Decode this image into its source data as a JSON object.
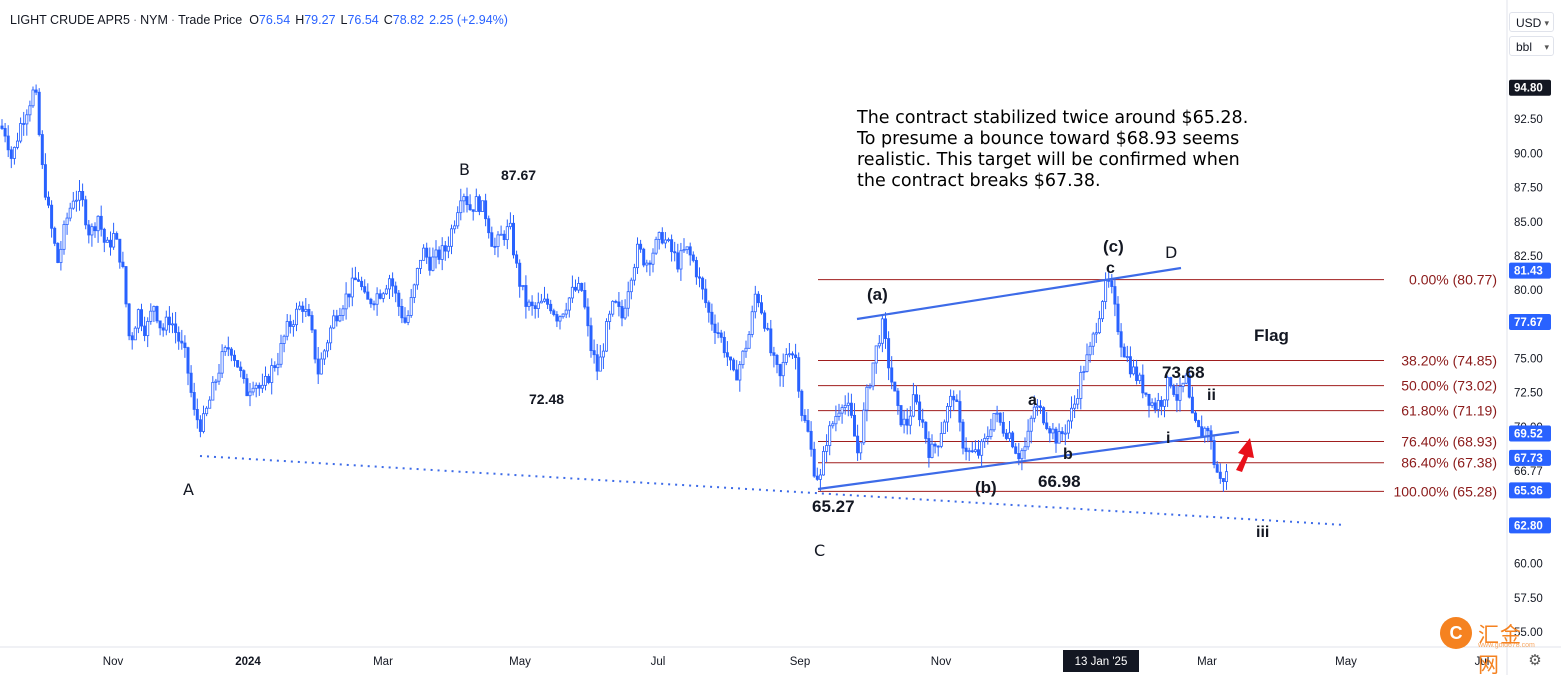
{
  "header": {
    "symbol": "LIGHT CRUDE APR5",
    "exchange": "NYM",
    "price_type": "Trade Price",
    "open_label": "O",
    "open": "76.54",
    "high_label": "H",
    "high": "79.27",
    "low_label": "L",
    "low": "76.54",
    "close_label": "C",
    "close": "78.82",
    "change": "2.25 (+2.94%)"
  },
  "units": {
    "currency": "USD",
    "unit": "bbl"
  },
  "note": "The contract stabilized twice around $65.28.\nTo presume a bounce toward $68.93 seems\nrealistic. This target will be confirmed when\nthe contract breaks $67.38.",
  "logo": {
    "icon": "huijin-logo-icon",
    "text": "汇金网",
    "sub": "www.gold678.com"
  },
  "settings_icon": "gear-icon",
  "colors": {
    "candle": "#2962ff",
    "fib_line": "#a01e1e",
    "fib_text": "#8b1a1a",
    "trendline": "#3d6be8",
    "arrow": "#e8111a",
    "badge_blue": "#2962ff",
    "badge_dark": "#131722"
  },
  "chart_data": {
    "type": "candlestick",
    "ylim": [
      55,
      97
    ],
    "y_ticks": [
      "92.50",
      "90.00",
      "87.50",
      "85.00",
      "82.50",
      "80.00",
      "75.00",
      "72.50",
      "70.00",
      "66.77",
      "60.00",
      "57.50",
      "55.00"
    ],
    "x_ticks": [
      "Nov",
      "2024",
      "Mar",
      "May",
      "Jul",
      "Sep",
      "Nov",
      "Mar",
      "May",
      "Jul"
    ],
    "x_highlight": "13 Jan '25",
    "price_badges": [
      {
        "value": "94.80",
        "style": "dark"
      },
      {
        "value": "81.43",
        "style": "blue"
      },
      {
        "value": "77.67",
        "style": "blue"
      },
      {
        "value": "69.52",
        "style": "blue"
      },
      {
        "value": "67.73",
        "style": "blue"
      },
      {
        "value": "65.36",
        "style": "blue"
      },
      {
        "value": "62.80",
        "style": "blue"
      }
    ],
    "fib_levels": [
      {
        "label": "0.00% (80.77)",
        "price": 80.77
      },
      {
        "label": "38.20% (74.85)",
        "price": 74.85
      },
      {
        "label": "50.00% (73.02)",
        "price": 73.02
      },
      {
        "label": "61.80% (71.19)",
        "price": 71.19
      },
      {
        "label": "76.40% (68.93)",
        "price": 68.93
      },
      {
        "label": "86.40% (67.38)",
        "price": 67.38
      },
      {
        "label": "100.00% (65.28)",
        "price": 65.28
      }
    ],
    "wave_labels": [
      "A",
      "B",
      "C",
      "87.67",
      "72.48",
      "65.27",
      "(a)",
      "(b)",
      "(c)",
      "a",
      "b",
      "c",
      "D",
      "66.98",
      "73.68",
      "i",
      "ii",
      "iii",
      "Flag"
    ],
    "series_path": [
      [
        0,
        92
      ],
      [
        6,
        91.5
      ],
      [
        12,
        89.5
      ],
      [
        20,
        92
      ],
      [
        28,
        93.5
      ],
      [
        35,
        94.8
      ],
      [
        42,
        89
      ],
      [
        50,
        85
      ],
      [
        58,
        82
      ],
      [
        66,
        85
      ],
      [
        74,
        87
      ],
      [
        82,
        86.5
      ],
      [
        90,
        84
      ],
      [
        98,
        85.5
      ],
      [
        106,
        83
      ],
      [
        114,
        84
      ],
      [
        122,
        82
      ],
      [
        130,
        76
      ],
      [
        138,
        78.5
      ],
      [
        146,
        77
      ],
      [
        154,
        79
      ],
      [
        162,
        77
      ],
      [
        170,
        78
      ],
      [
        178,
        76.5
      ],
      [
        186,
        75
      ],
      [
        194,
        71
      ],
      [
        202,
        70
      ],
      [
        208,
        71.5
      ],
      [
        214,
        73
      ],
      [
        222,
        75
      ],
      [
        230,
        76
      ],
      [
        238,
        74.5
      ],
      [
        246,
        72.5
      ],
      [
        254,
        73.5
      ],
      [
        262,
        72.5
      ],
      [
        270,
        74
      ],
      [
        278,
        75
      ],
      [
        286,
        77
      ],
      [
        294,
        78
      ],
      [
        302,
        79
      ],
      [
        310,
        77.5
      ],
      [
        318,
        74
      ],
      [
        326,
        76
      ],
      [
        334,
        78
      ],
      [
        342,
        79
      ],
      [
        350,
        80
      ],
      [
        358,
        81
      ],
      [
        366,
        79
      ],
      [
        374,
        79.5
      ],
      [
        382,
        80
      ],
      [
        390,
        81
      ],
      [
        398,
        79
      ],
      [
        406,
        77.5
      ],
      [
        414,
        80
      ],
      [
        422,
        83
      ],
      [
        430,
        82
      ],
      [
        438,
        82.5
      ],
      [
        446,
        83
      ],
      [
        454,
        85
      ],
      [
        462,
        87.5
      ],
      [
        470,
        86
      ],
      [
        478,
        86.5
      ],
      [
        486,
        85.5
      ],
      [
        494,
        83
      ],
      [
        502,
        84
      ],
      [
        510,
        84.5
      ],
      [
        518,
        81
      ],
      [
        526,
        79
      ],
      [
        534,
        78.5
      ],
      [
        542,
        79
      ],
      [
        550,
        79
      ],
      [
        558,
        78
      ],
      [
        566,
        79
      ],
      [
        574,
        80
      ],
      [
        582,
        80
      ],
      [
        590,
        76
      ],
      [
        598,
        74
      ],
      [
        606,
        77
      ],
      [
        614,
        79
      ],
      [
        622,
        78
      ],
      [
        630,
        81
      ],
      [
        638,
        83
      ],
      [
        646,
        82
      ],
      [
        654,
        83
      ],
      [
        662,
        84
      ],
      [
        670,
        83
      ],
      [
        678,
        82
      ],
      [
        686,
        83
      ],
      [
        694,
        82
      ],
      [
        702,
        80
      ],
      [
        710,
        78
      ],
      [
        718,
        77
      ],
      [
        726,
        75.5
      ],
      [
        734,
        73.5
      ],
      [
        742,
        75
      ],
      [
        750,
        77
      ],
      [
        756,
        80
      ],
      [
        764,
        78
      ],
      [
        772,
        75
      ],
      [
        780,
        73.5
      ],
      [
        788,
        76
      ],
      [
        796,
        75
      ],
      [
        802,
        71
      ],
      [
        808,
        69.5
      ],
      [
        814,
        67
      ],
      [
        820,
        66
      ],
      [
        826,
        69
      ],
      [
        834,
        70.5
      ],
      [
        842,
        72
      ],
      [
        850,
        71
      ],
      [
        858,
        68
      ],
      [
        866,
        72
      ],
      [
        874,
        75
      ],
      [
        882,
        77.5
      ],
      [
        890,
        74
      ],
      [
        898,
        71
      ],
      [
        906,
        70
      ],
      [
        914,
        72
      ],
      [
        922,
        70.5
      ],
      [
        930,
        68
      ],
      [
        938,
        69
      ],
      [
        946,
        71
      ],
      [
        954,
        72.5
      ],
      [
        962,
        69
      ],
      [
        970,
        68
      ],
      [
        978,
        68
      ],
      [
        986,
        69
      ],
      [
        994,
        71
      ],
      [
        1002,
        70
      ],
      [
        1010,
        69.5
      ],
      [
        1018,
        68
      ],
      [
        1026,
        68.5
      ],
      [
        1034,
        71.5
      ],
      [
        1042,
        71
      ],
      [
        1050,
        70
      ],
      [
        1058,
        69
      ],
      [
        1066,
        70
      ],
      [
        1074,
        71.5
      ],
      [
        1082,
        74
      ],
      [
        1090,
        75.5
      ],
      [
        1098,
        78
      ],
      [
        1104,
        80
      ],
      [
        1110,
        80.5
      ],
      [
        1116,
        78
      ],
      [
        1122,
        76
      ],
      [
        1130,
        74.5
      ],
      [
        1138,
        73.5
      ],
      [
        1146,
        72.5
      ],
      [
        1154,
        71.5
      ],
      [
        1162,
        72
      ],
      [
        1170,
        73.5
      ],
      [
        1178,
        72
      ],
      [
        1186,
        73.5
      ],
      [
        1192,
        70.5
      ],
      [
        1200,
        69.5
      ],
      [
        1208,
        70
      ],
      [
        1214,
        67.5
      ],
      [
        1220,
        66
      ],
      [
        1226,
        66.5
      ]
    ]
  }
}
